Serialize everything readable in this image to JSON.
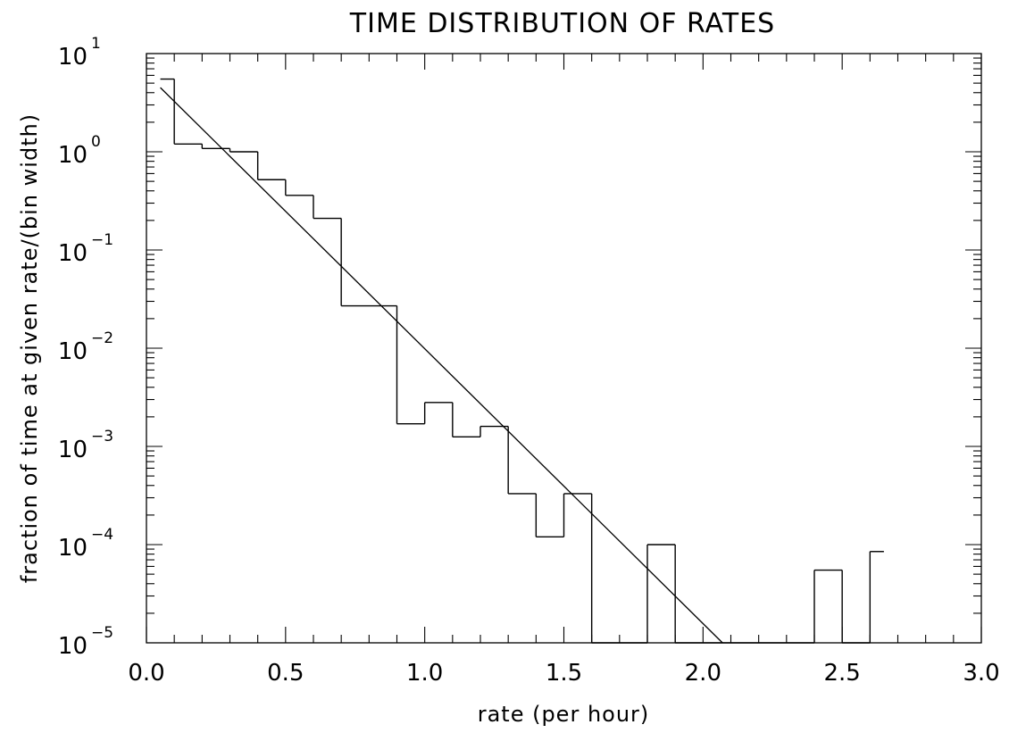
{
  "chart_data": {
    "type": "line",
    "title": "TIME DISTRIBUTION OF RATES",
    "xlabel": "rate (per hour)",
    "ylabel": "fraction of time at given rate/(bin width)",
    "xlim": [
      0.0,
      3.0
    ],
    "ylim": [
      1e-05,
      10
    ],
    "yscale": "log",
    "grid": false,
    "x_ticks": [
      "0.0",
      "0.5",
      "1.0",
      "1.5",
      "2.0",
      "2.5",
      "3.0"
    ],
    "x_tick_values": [
      0.0,
      0.5,
      1.0,
      1.5,
      2.0,
      2.5,
      3.0
    ],
    "y_ticks": [
      {
        "base": "10",
        "exp": "1",
        "value": 10
      },
      {
        "base": "10",
        "exp": "0",
        "value": 1
      },
      {
        "base": "10",
        "exp": "−1",
        "value": 0.1
      },
      {
        "base": "10",
        "exp": "−2",
        "value": 0.01
      },
      {
        "base": "10",
        "exp": "−3",
        "value": 0.001
      },
      {
        "base": "10",
        "exp": "−4",
        "value": 0.0001
      },
      {
        "base": "10",
        "exp": "−5",
        "value": 1e-05
      }
    ],
    "series": [
      {
        "style": "histogram-step",
        "bins": [
          {
            "x0": 0.05,
            "x1": 0.1,
            "y": 5.5
          },
          {
            "x0": 0.1,
            "x1": 0.2,
            "y": 1.2
          },
          {
            "x0": 0.2,
            "x1": 0.3,
            "y": 1.08
          },
          {
            "x0": 0.3,
            "x1": 0.4,
            "y": 1.0
          },
          {
            "x0": 0.4,
            "x1": 0.5,
            "y": 0.52
          },
          {
            "x0": 0.5,
            "x1": 0.6,
            "y": 0.36
          },
          {
            "x0": 0.6,
            "x1": 0.7,
            "y": 0.21
          },
          {
            "x0": 0.7,
            "x1": 0.9,
            "y": 0.027
          },
          {
            "x0": 0.9,
            "x1": 1.0,
            "y": 0.0017
          },
          {
            "x0": 1.0,
            "x1": 1.1,
            "y": 0.0028
          },
          {
            "x0": 1.1,
            "x1": 1.2,
            "y": 0.00125
          },
          {
            "x0": 1.2,
            "x1": 1.3,
            "y": 0.0016
          },
          {
            "x0": 1.3,
            "x1": 1.4,
            "y": 0.00033
          },
          {
            "x0": 1.4,
            "x1": 1.5,
            "y": 0.00012
          },
          {
            "x0": 1.5,
            "x1": 1.6,
            "y": 0.00033
          },
          {
            "x0": 1.6,
            "x1": 1.8,
            "y": null
          },
          {
            "x0": 1.8,
            "x1": 1.9,
            "y": 0.0001
          },
          {
            "x0": 1.9,
            "x1": 2.4,
            "y": null
          },
          {
            "x0": 2.4,
            "x1": 2.5,
            "y": 5.5e-05
          },
          {
            "x0": 2.5,
            "x1": 2.6,
            "y": null
          },
          {
            "x0": 2.6,
            "x1": 2.65,
            "y": 8.5e-05
          }
        ]
      },
      {
        "style": "fit-line",
        "x": [
          0.05,
          2.07
        ],
        "values": [
          4.5,
          1e-05
        ]
      }
    ]
  }
}
